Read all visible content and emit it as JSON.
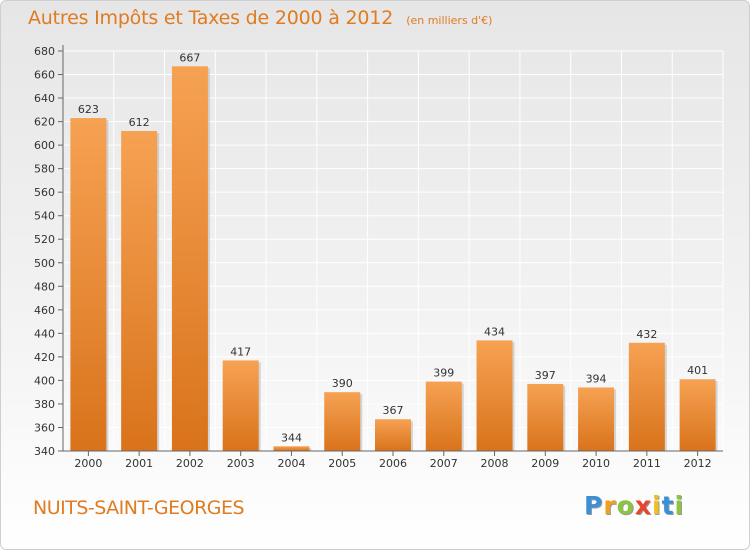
{
  "chart_data": {
    "type": "bar",
    "title": "Autres Impôts et Taxes de 2000 à 2012",
    "subtitle": "(en milliers d'€)",
    "categories": [
      "2000",
      "2001",
      "2002",
      "2003",
      "2004",
      "2005",
      "2006",
      "2007",
      "2008",
      "2009",
      "2010",
      "2011",
      "2012"
    ],
    "values": [
      623,
      612,
      667,
      417,
      344,
      390,
      367,
      399,
      434,
      397,
      394,
      432,
      401
    ],
    "data_labels": [
      "623",
      "612",
      "667",
      "417",
      "344",
      "390",
      "367",
      "399",
      "434",
      "397",
      "394",
      "432",
      "401"
    ],
    "ylim": [
      340,
      680
    ],
    "ytick_step": 20,
    "yticks": [
      "340",
      "360",
      "380",
      "400",
      "420",
      "440",
      "460",
      "480",
      "500",
      "520",
      "540",
      "560",
      "580",
      "600",
      "620",
      "640",
      "660",
      "680"
    ],
    "grid": true,
    "xlabel": "",
    "ylabel": "",
    "colors": {
      "bar_light": "#f6a253",
      "bar_dark": "#d9731b",
      "text": "#333333",
      "grid": "#ffffff",
      "title": "#e07b20"
    }
  },
  "commune": "NUITS-SAINT-GEORGES",
  "logo": {
    "letters": [
      "P",
      "r",
      "o",
      "x",
      "i",
      "t",
      "i"
    ],
    "colors": [
      "#3a8fd6",
      "#f0a020",
      "#8cc63f",
      "#e8452c",
      "#f0c020",
      "#3a8fd6",
      "#8cc63f"
    ]
  }
}
